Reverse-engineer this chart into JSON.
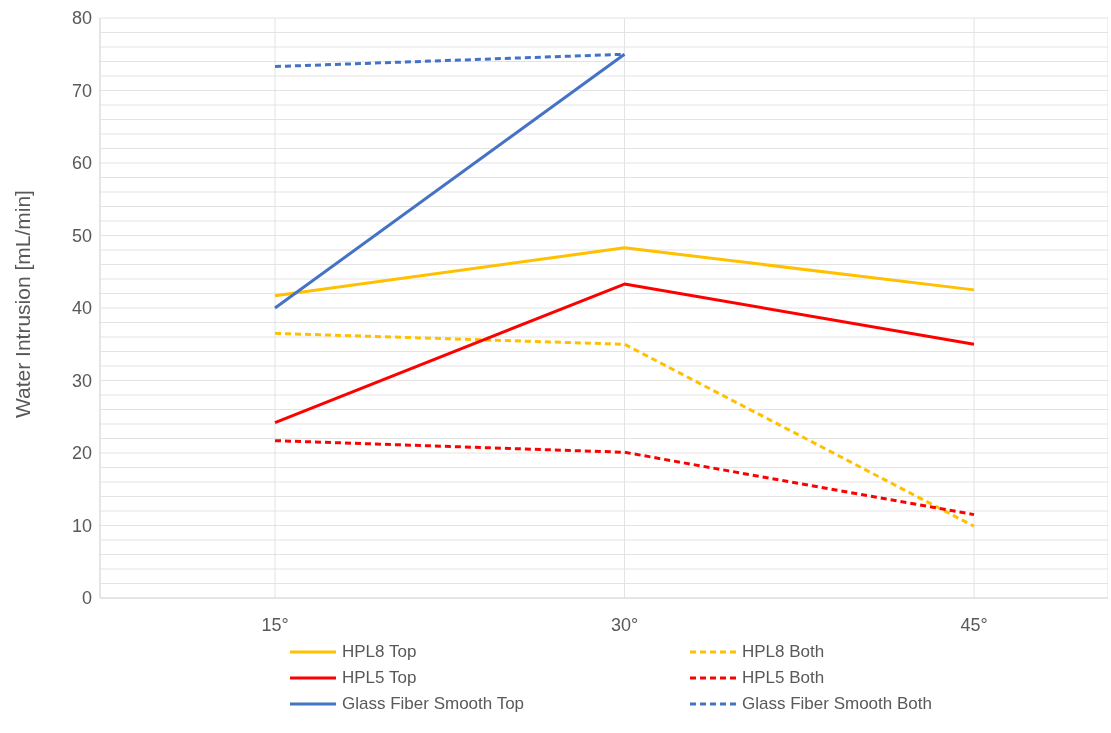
{
  "chart_data": {
    "type": "line",
    "ylabel": "Water Intrusion [mL/min]",
    "categories": [
      "15°",
      "30°",
      "45°"
    ],
    "series": [
      {
        "name": "HPL8 Top",
        "color": "#ffc000",
        "line_style": "solid",
        "values": [
          41.7,
          48.3,
          42.5
        ]
      },
      {
        "name": "HPL8 Both",
        "color": "#ffc000",
        "line_style": "dashed",
        "values": [
          36.5,
          35.0,
          9.9
        ]
      },
      {
        "name": "HPL5 Top",
        "color": "#ff0000",
        "line_style": "solid",
        "values": [
          24.2,
          43.3,
          35.0
        ]
      },
      {
        "name": "HPL5 Both",
        "color": "#ff0000",
        "line_style": "dashed",
        "values": [
          21.7,
          20.1,
          11.5
        ]
      },
      {
        "name": "Glass Fiber Smooth Top",
        "color": "#4472c4",
        "line_style": "solid",
        "values": [
          40.0,
          75.0,
          null
        ]
      },
      {
        "name": "Glass Fiber Smooth Both",
        "color": "#4472c4",
        "line_style": "dashed",
        "values": [
          73.3,
          75.0,
          null
        ]
      }
    ],
    "ylim": [
      0,
      80
    ],
    "yticks": [
      0,
      {
        "value": 2,
        "label": null
      },
      {
        "value": 4,
        "label": null
      },
      {
        "value": 6,
        "label": null
      },
      {
        "value": 8,
        "label": null
      },
      10,
      {
        "value": 12,
        "label": null
      },
      {
        "value": 14,
        "label": null
      },
      {
        "value": 16,
        "label": null
      },
      {
        "value": 18,
        "label": null
      },
      20,
      {
        "value": 22,
        "label": null
      },
      {
        "value": 24,
        "label": null
      },
      {
        "value": 26,
        "label": null
      },
      {
        "value": 28,
        "label": null
      },
      30,
      {
        "value": 32,
        "label": null
      },
      {
        "value": 34,
        "label": null
      },
      {
        "value": 36,
        "label": null
      },
      {
        "value": 38,
        "label": null
      },
      40,
      {
        "value": 42,
        "label": null
      },
      {
        "value": 44,
        "label": null
      },
      {
        "value": 46,
        "label": null
      },
      {
        "value": 48,
        "label": null
      },
      50,
      {
        "value": 52,
        "label": null
      },
      {
        "value": 54,
        "label": null
      },
      {
        "value": 56,
        "label": null
      },
      {
        "value": 58,
        "label": null
      },
      60,
      {
        "value": 62,
        "label": null
      },
      {
        "value": 64,
        "label": null
      },
      {
        "value": 66,
        "label": null
      },
      {
        "value": 68,
        "label": null
      },
      70,
      {
        "value": 72,
        "label": null
      },
      {
        "value": 74,
        "label": null
      },
      {
        "value": 76,
        "label": null
      },
      {
        "value": 78,
        "label": null
      },
      80
    ],
    "grid": true,
    "legend": "bottom",
    "marker": "none"
  }
}
